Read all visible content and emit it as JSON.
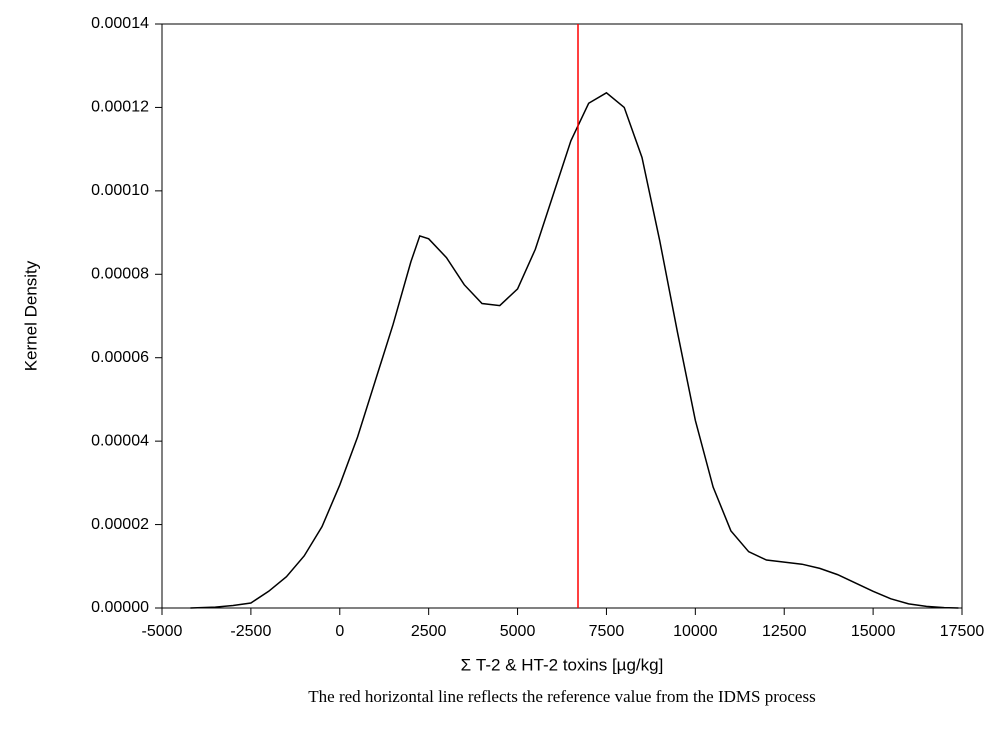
{
  "chart_data": {
    "type": "line",
    "y_label": "Kernel Density",
    "x_label": "Σ T-2 & HT-2 toxins [µg/kg]",
    "caption": "The red horizontal line reflects the reference value from the IDMS process",
    "x": [
      -4200,
      -3500,
      -3000,
      -2500,
      -2000,
      -1500,
      -1000,
      -500,
      0,
      500,
      1000,
      1500,
      2000,
      2250,
      2500,
      3000,
      3500,
      4000,
      4500,
      5000,
      5500,
      6000,
      6500,
      7000,
      7500,
      8000,
      8500,
      9000,
      9500,
      10000,
      10500,
      11000,
      11500,
      12000,
      12500,
      13000,
      13500,
      14000,
      14500,
      15000,
      15500,
      16000,
      16500,
      17000,
      17400
    ],
    "series": [
      {
        "color": "#000000",
        "values": [
          0,
          2e-07,
          6e-07,
          1.2e-06,
          4e-06,
          7.5e-06,
          1.25e-05,
          1.95e-05,
          2.95e-05,
          4.1e-05,
          5.45e-05,
          6.8e-05,
          8.3e-05,
          8.92e-05,
          8.85e-05,
          8.4e-05,
          7.75e-05,
          7.3e-05,
          7.25e-05,
          7.65e-05,
          8.6e-05,
          9.9e-05,
          0.000112,
          0.000121,
          0.0001235,
          0.00012,
          0.000108,
          8.8e-05,
          6.6e-05,
          4.5e-05,
          2.9e-05,
          1.85e-05,
          1.35e-05,
          1.15e-05,
          1.1e-05,
          1.05e-05,
          9.5e-06,
          8e-06,
          6e-06,
          4e-06,
          2.2e-06,
          1e-06,
          4e-07,
          1e-07,
          0
        ]
      }
    ],
    "reference_line": {
      "x": 6700,
      "color": "#ff0000"
    },
    "xlim": [
      -5000,
      17500
    ],
    "xticks": [
      -5000,
      -2500,
      0,
      2500,
      5000,
      7500,
      10000,
      12500,
      15000,
      17500
    ],
    "ylim": [
      0,
      0.00014
    ],
    "yticks": [
      {
        "value": 0,
        "label": "0.00000"
      },
      {
        "value": 2e-05,
        "label": "0.00002"
      },
      {
        "value": 4e-05,
        "label": "0.00004"
      },
      {
        "value": 6e-05,
        "label": "0.00006"
      },
      {
        "value": 8e-05,
        "label": "0.00008"
      },
      {
        "value": 0.0001,
        "label": "0.00010"
      },
      {
        "value": 0.00012,
        "label": "0.00012"
      },
      {
        "value": 0.00014,
        "label": "0.00014"
      }
    ],
    "grid": false
  }
}
